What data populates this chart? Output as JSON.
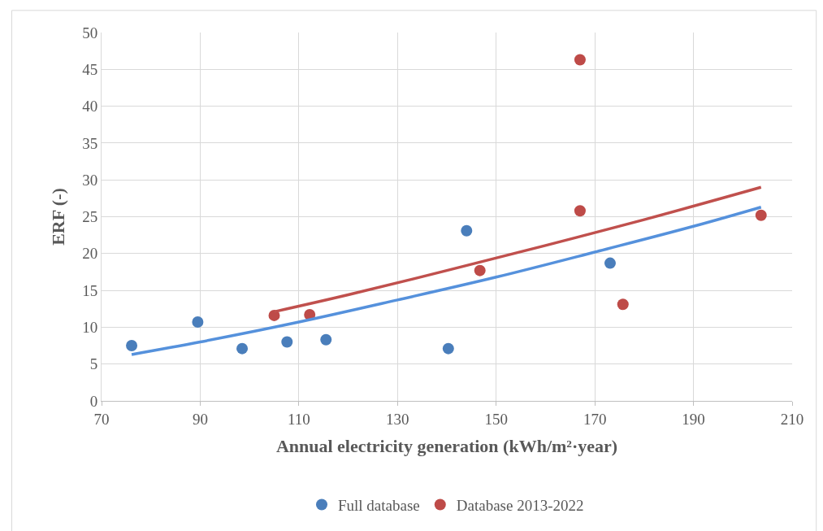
{
  "chart_data": {
    "type": "scatter",
    "xlabel": "Annual electricity generation (kWh/m²·year)",
    "ylabel": "ERF (-)",
    "xlim": [
      70,
      210
    ],
    "xticks": [
      70,
      90,
      110,
      130,
      150,
      170,
      190,
      210
    ],
    "ylim": [
      0,
      50
    ],
    "yticks": [
      0,
      5,
      10,
      15,
      20,
      25,
      30,
      35,
      40,
      45,
      50
    ],
    "grid": true,
    "legend": "bottom",
    "series": [
      {
        "name": "Full database",
        "marker": "circle",
        "color": "#4a7ebb",
        "x": [
          76.1,
          89.5,
          98.5,
          107.6,
          115.5,
          140.3,
          144.0,
          173.1
        ],
        "values": [
          7.5,
          10.7,
          7.1,
          8.0,
          8.3,
          7.1,
          23.1,
          18.7
        ]
      },
      {
        "name": "Database 2013-2022",
        "marker": "circle",
        "color": "#be4b48",
        "x": [
          105.0,
          112.2,
          146.7,
          167.0,
          167.0,
          175.7,
          203.7
        ],
        "values": [
          11.6,
          11.7,
          17.7,
          46.3,
          25.8,
          13.1,
          25.2
        ]
      },
      {
        "type": "line",
        "marker": "none",
        "color": "#5591dc",
        "x": [
          76.1,
          90,
          110,
          130,
          150,
          170,
          190,
          203.7
        ],
        "values": [
          6.3,
          8.0,
          10.7,
          13.7,
          16.8,
          20.2,
          23.7,
          26.3
        ]
      },
      {
        "type": "line",
        "marker": "none",
        "color": "#c0504d",
        "x": [
          105.0,
          120,
          140,
          160,
          180,
          203.7
        ],
        "values": [
          12.1,
          14.4,
          17.7,
          21.1,
          24.6,
          29.0
        ]
      }
    ]
  }
}
